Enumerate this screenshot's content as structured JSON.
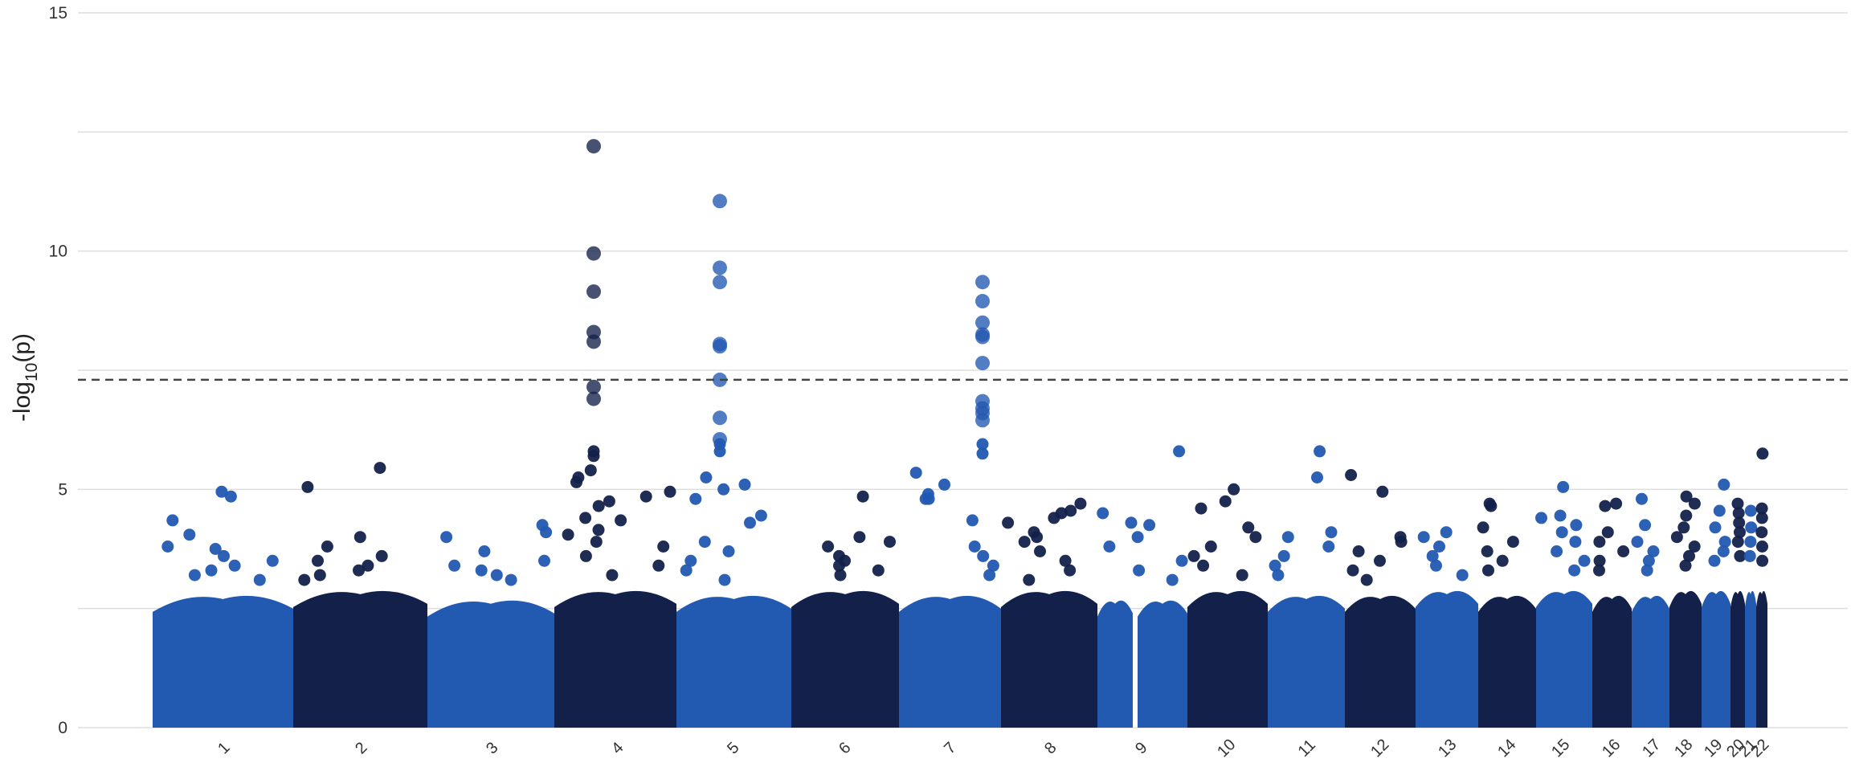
{
  "chart_data": {
    "type": "scatter",
    "title": "",
    "xlabel": "",
    "ylabel": "-log10(p)",
    "ylabel_parts": {
      "pre": "-log",
      "sub": "10",
      "post": "(p)"
    },
    "ylim": [
      0,
      15
    ],
    "yticks": [
      "0",
      "5",
      "10",
      "15"
    ],
    "grid": true,
    "legend": "none",
    "threshold": 7.3,
    "colors": {
      "light": "#2259b1",
      "dark": "#13214a",
      "grid": "#dddddd",
      "threshold": "#444444"
    },
    "chromosomes": [
      "1",
      "2",
      "3",
      "4",
      "5",
      "6",
      "7",
      "8",
      "9",
      "10",
      "11",
      "12",
      "13",
      "14",
      "15",
      "16",
      "17",
      "18",
      "19",
      "20",
      "21",
      "22"
    ],
    "bulk_max_neglog10p": [
      2.8,
      2.9,
      2.7,
      2.9,
      2.8,
      2.9,
      2.8,
      2.9,
      2.7,
      2.9,
      2.8,
      2.8,
      2.9,
      2.8,
      2.9,
      2.8,
      2.8,
      2.9,
      2.9,
      2.9,
      2.9,
      2.9
    ],
    "points": [
      {
        "chr": "1",
        "neglog10p": 4.95
      },
      {
        "chr": "1",
        "neglog10p": 4.85
      },
      {
        "chr": "1",
        "neglog10p": 4.35
      },
      {
        "chr": "1",
        "neglog10p": 4.05
      },
      {
        "chr": "1",
        "neglog10p": 3.75
      },
      {
        "chr": "1",
        "neglog10p": 3.6
      },
      {
        "chr": "1",
        "neglog10p": 3.8
      },
      {
        "chr": "1",
        "neglog10p": 3.5
      },
      {
        "chr": "1",
        "neglog10p": 3.4
      },
      {
        "chr": "1",
        "neglog10p": 3.3
      },
      {
        "chr": "1",
        "neglog10p": 3.2
      },
      {
        "chr": "1",
        "neglog10p": 3.1
      },
      {
        "chr": "2",
        "neglog10p": 5.45
      },
      {
        "chr": "2",
        "neglog10p": 5.05
      },
      {
        "chr": "2",
        "neglog10p": 4.0
      },
      {
        "chr": "2",
        "neglog10p": 3.8
      },
      {
        "chr": "2",
        "neglog10p": 3.6
      },
      {
        "chr": "2",
        "neglog10p": 3.5
      },
      {
        "chr": "2",
        "neglog10p": 3.4
      },
      {
        "chr": "2",
        "neglog10p": 3.3
      },
      {
        "chr": "2",
        "neglog10p": 3.2
      },
      {
        "chr": "2",
        "neglog10p": 3.1
      },
      {
        "chr": "3",
        "neglog10p": 4.25
      },
      {
        "chr": "3",
        "neglog10p": 4.1
      },
      {
        "chr": "3",
        "neglog10p": 4.0
      },
      {
        "chr": "3",
        "neglog10p": 3.7
      },
      {
        "chr": "3",
        "neglog10p": 3.5
      },
      {
        "chr": "3",
        "neglog10p": 3.4
      },
      {
        "chr": "3",
        "neglog10p": 3.3
      },
      {
        "chr": "3",
        "neglog10p": 3.2
      },
      {
        "chr": "3",
        "neglog10p": 3.1
      },
      {
        "chr": "4",
        "neglog10p": 12.2
      },
      {
        "chr": "4",
        "neglog10p": 9.95
      },
      {
        "chr": "4",
        "neglog10p": 9.15
      },
      {
        "chr": "4",
        "neglog10p": 8.3
      },
      {
        "chr": "4",
        "neglog10p": 8.1
      },
      {
        "chr": "4",
        "neglog10p": 7.15
      },
      {
        "chr": "4",
        "neglog10p": 6.9
      },
      {
        "chr": "4",
        "neglog10p": 5.8
      },
      {
        "chr": "4",
        "neglog10p": 5.7
      },
      {
        "chr": "4",
        "neglog10p": 5.4
      },
      {
        "chr": "4",
        "neglog10p": 5.25
      },
      {
        "chr": "4",
        "neglog10p": 4.95
      },
      {
        "chr": "4",
        "neglog10p": 4.75
      },
      {
        "chr": "4",
        "neglog10p": 4.4
      },
      {
        "chr": "4",
        "neglog10p": 4.35
      },
      {
        "chr": "4",
        "neglog10p": 3.9
      },
      {
        "chr": "4",
        "neglog10p": 5.15
      },
      {
        "chr": "4",
        "neglog10p": 4.85
      },
      {
        "chr": "4",
        "neglog10p": 4.65
      },
      {
        "chr": "4",
        "neglog10p": 4.15
      },
      {
        "chr": "4",
        "neglog10p": 4.05
      },
      {
        "chr": "4",
        "neglog10p": 3.8
      },
      {
        "chr": "4",
        "neglog10p": 3.6
      },
      {
        "chr": "4",
        "neglog10p": 3.4
      },
      {
        "chr": "4",
        "neglog10p": 3.2
      },
      {
        "chr": "5",
        "neglog10p": 11.05
      },
      {
        "chr": "5",
        "neglog10p": 9.65
      },
      {
        "chr": "5",
        "neglog10p": 9.35
      },
      {
        "chr": "5",
        "neglog10p": 8.05
      },
      {
        "chr": "5",
        "neglog10p": 8.0
      },
      {
        "chr": "5",
        "neglog10p": 7.3
      },
      {
        "chr": "5",
        "neglog10p": 6.5
      },
      {
        "chr": "5",
        "neglog10p": 6.05
      },
      {
        "chr": "5",
        "neglog10p": 5.95
      },
      {
        "chr": "5",
        "neglog10p": 5.8
      },
      {
        "chr": "5",
        "neglog10p": 5.25
      },
      {
        "chr": "5",
        "neglog10p": 5.1
      },
      {
        "chr": "5",
        "neglog10p": 5.0
      },
      {
        "chr": "5",
        "neglog10p": 4.45
      },
      {
        "chr": "5",
        "neglog10p": 4.3
      },
      {
        "chr": "5",
        "neglog10p": 4.8
      },
      {
        "chr": "5",
        "neglog10p": 3.9
      },
      {
        "chr": "5",
        "neglog10p": 3.7
      },
      {
        "chr": "5",
        "neglog10p": 3.5
      },
      {
        "chr": "5",
        "neglog10p": 3.3
      },
      {
        "chr": "5",
        "neglog10p": 3.1
      },
      {
        "chr": "6",
        "neglog10p": 4.85
      },
      {
        "chr": "6",
        "neglog10p": 4.0
      },
      {
        "chr": "6",
        "neglog10p": 3.9
      },
      {
        "chr": "6",
        "neglog10p": 3.8
      },
      {
        "chr": "6",
        "neglog10p": 3.6
      },
      {
        "chr": "6",
        "neglog10p": 3.5
      },
      {
        "chr": "6",
        "neglog10p": 3.4
      },
      {
        "chr": "6",
        "neglog10p": 3.3
      },
      {
        "chr": "6",
        "neglog10p": 3.2
      },
      {
        "chr": "7",
        "neglog10p": 9.35
      },
      {
        "chr": "7",
        "neglog10p": 8.95
      },
      {
        "chr": "7",
        "neglog10p": 8.5
      },
      {
        "chr": "7",
        "neglog10p": 8.25
      },
      {
        "chr": "7",
        "neglog10p": 8.2
      },
      {
        "chr": "7",
        "neglog10p": 7.65
      },
      {
        "chr": "7",
        "neglog10p": 6.85
      },
      {
        "chr": "7",
        "neglog10p": 6.7
      },
      {
        "chr": "7",
        "neglog10p": 6.6
      },
      {
        "chr": "7",
        "neglog10p": 6.45
      },
      {
        "chr": "7",
        "neglog10p": 5.95
      },
      {
        "chr": "7",
        "neglog10p": 5.75
      },
      {
        "chr": "7",
        "neglog10p": 5.1
      },
      {
        "chr": "7",
        "neglog10p": 4.9
      },
      {
        "chr": "7",
        "neglog10p": 4.8
      },
      {
        "chr": "7",
        "neglog10p": 4.35
      },
      {
        "chr": "7",
        "neglog10p": 5.35
      },
      {
        "chr": "7",
        "neglog10p": 4.8
      },
      {
        "chr": "7",
        "neglog10p": 3.8
      },
      {
        "chr": "7",
        "neglog10p": 3.6
      },
      {
        "chr": "7",
        "neglog10p": 3.4
      },
      {
        "chr": "7",
        "neglog10p": 3.2
      },
      {
        "chr": "8",
        "neglog10p": 4.7
      },
      {
        "chr": "8",
        "neglog10p": 4.55
      },
      {
        "chr": "8",
        "neglog10p": 4.5
      },
      {
        "chr": "8",
        "neglog10p": 4.4
      },
      {
        "chr": "8",
        "neglog10p": 4.3
      },
      {
        "chr": "8",
        "neglog10p": 4.1
      },
      {
        "chr": "8",
        "neglog10p": 4.0
      },
      {
        "chr": "8",
        "neglog10p": 3.9
      },
      {
        "chr": "8",
        "neglog10p": 3.7
      },
      {
        "chr": "8",
        "neglog10p": 3.5
      },
      {
        "chr": "8",
        "neglog10p": 3.3
      },
      {
        "chr": "8",
        "neglog10p": 3.1
      },
      {
        "chr": "9",
        "neglog10p": 5.8
      },
      {
        "chr": "9",
        "neglog10p": 4.5
      },
      {
        "chr": "9",
        "neglog10p": 4.3
      },
      {
        "chr": "9",
        "neglog10p": 4.25
      },
      {
        "chr": "9",
        "neglog10p": 4.0
      },
      {
        "chr": "9",
        "neglog10p": 3.8
      },
      {
        "chr": "9",
        "neglog10p": 3.5
      },
      {
        "chr": "9",
        "neglog10p": 3.3
      },
      {
        "chr": "9",
        "neglog10p": 3.1
      },
      {
        "chr": "10",
        "neglog10p": 5.0
      },
      {
        "chr": "10",
        "neglog10p": 4.75
      },
      {
        "chr": "10",
        "neglog10p": 4.6
      },
      {
        "chr": "10",
        "neglog10p": 4.2
      },
      {
        "chr": "10",
        "neglog10p": 4.0
      },
      {
        "chr": "10",
        "neglog10p": 3.8
      },
      {
        "chr": "10",
        "neglog10p": 3.6
      },
      {
        "chr": "10",
        "neglog10p": 3.4
      },
      {
        "chr": "10",
        "neglog10p": 3.2
      },
      {
        "chr": "11",
        "neglog10p": 5.8
      },
      {
        "chr": "11",
        "neglog10p": 5.25
      },
      {
        "chr": "11",
        "neglog10p": 4.1
      },
      {
        "chr": "11",
        "neglog10p": 4.0
      },
      {
        "chr": "11",
        "neglog10p": 3.8
      },
      {
        "chr": "11",
        "neglog10p": 3.6
      },
      {
        "chr": "11",
        "neglog10p": 3.4
      },
      {
        "chr": "11",
        "neglog10p": 3.2
      },
      {
        "chr": "12",
        "neglog10p": 5.3
      },
      {
        "chr": "12",
        "neglog10p": 4.95
      },
      {
        "chr": "12",
        "neglog10p": 4.0
      },
      {
        "chr": "12",
        "neglog10p": 3.9
      },
      {
        "chr": "12",
        "neglog10p": 3.7
      },
      {
        "chr": "12",
        "neglog10p": 3.5
      },
      {
        "chr": "12",
        "neglog10p": 3.3
      },
      {
        "chr": "12",
        "neglog10p": 3.1
      },
      {
        "chr": "13",
        "neglog10p": 4.1
      },
      {
        "chr": "13",
        "neglog10p": 4.0
      },
      {
        "chr": "13",
        "neglog10p": 3.8
      },
      {
        "chr": "13",
        "neglog10p": 3.6
      },
      {
        "chr": "13",
        "neglog10p": 3.4
      },
      {
        "chr": "13",
        "neglog10p": 3.2
      },
      {
        "chr": "14",
        "neglog10p": 4.7
      },
      {
        "chr": "14",
        "neglog10p": 4.65
      },
      {
        "chr": "14",
        "neglog10p": 4.2
      },
      {
        "chr": "14",
        "neglog10p": 3.9
      },
      {
        "chr": "14",
        "neglog10p": 3.7
      },
      {
        "chr": "14",
        "neglog10p": 3.5
      },
      {
        "chr": "14",
        "neglog10p": 3.3
      },
      {
        "chr": "15",
        "neglog10p": 5.05
      },
      {
        "chr": "15",
        "neglog10p": 4.45
      },
      {
        "chr": "15",
        "neglog10p": 4.4
      },
      {
        "chr": "15",
        "neglog10p": 4.25
      },
      {
        "chr": "15",
        "neglog10p": 4.1
      },
      {
        "chr": "15",
        "neglog10p": 3.9
      },
      {
        "chr": "15",
        "neglog10p": 3.7
      },
      {
        "chr": "15",
        "neglog10p": 3.5
      },
      {
        "chr": "15",
        "neglog10p": 3.3
      },
      {
        "chr": "16",
        "neglog10p": 4.7
      },
      {
        "chr": "16",
        "neglog10p": 4.65
      },
      {
        "chr": "16",
        "neglog10p": 4.1
      },
      {
        "chr": "16",
        "neglog10p": 3.9
      },
      {
        "chr": "16",
        "neglog10p": 3.7
      },
      {
        "chr": "16",
        "neglog10p": 3.5
      },
      {
        "chr": "16",
        "neglog10p": 3.3
      },
      {
        "chr": "17",
        "neglog10p": 4.8
      },
      {
        "chr": "17",
        "neglog10p": 4.25
      },
      {
        "chr": "17",
        "neglog10p": 3.9
      },
      {
        "chr": "17",
        "neglog10p": 3.7
      },
      {
        "chr": "17",
        "neglog10p": 3.5
      },
      {
        "chr": "17",
        "neglog10p": 3.3
      },
      {
        "chr": "18",
        "neglog10p": 4.85
      },
      {
        "chr": "18",
        "neglog10p": 4.7
      },
      {
        "chr": "18",
        "neglog10p": 4.45
      },
      {
        "chr": "18",
        "neglog10p": 4.2
      },
      {
        "chr": "18",
        "neglog10p": 4.0
      },
      {
        "chr": "18",
        "neglog10p": 3.8
      },
      {
        "chr": "18",
        "neglog10p": 3.6
      },
      {
        "chr": "18",
        "neglog10p": 3.4
      },
      {
        "chr": "19",
        "neglog10p": 5.1
      },
      {
        "chr": "19",
        "neglog10p": 4.55
      },
      {
        "chr": "19",
        "neglog10p": 4.2
      },
      {
        "chr": "19",
        "neglog10p": 3.9
      },
      {
        "chr": "19",
        "neglog10p": 3.7
      },
      {
        "chr": "19",
        "neglog10p": 3.5
      },
      {
        "chr": "20",
        "neglog10p": 4.7
      },
      {
        "chr": "20",
        "neglog10p": 4.5
      },
      {
        "chr": "20",
        "neglog10p": 4.3
      },
      {
        "chr": "20",
        "neglog10p": 4.1
      },
      {
        "chr": "20",
        "neglog10p": 3.9
      },
      {
        "chr": "20",
        "neglog10p": 3.6
      },
      {
        "chr": "21",
        "neglog10p": 4.55
      },
      {
        "chr": "21",
        "neglog10p": 4.2
      },
      {
        "chr": "21",
        "neglog10p": 3.9
      },
      {
        "chr": "21",
        "neglog10p": 3.6
      },
      {
        "chr": "22",
        "neglog10p": 5.75
      },
      {
        "chr": "22",
        "neglog10p": 4.6
      },
      {
        "chr": "22",
        "neglog10p": 4.4
      },
      {
        "chr": "22",
        "neglog10p": 4.1
      },
      {
        "chr": "22",
        "neglog10p": 3.8
      },
      {
        "chr": "22",
        "neglog10p": 3.5
      }
    ]
  }
}
